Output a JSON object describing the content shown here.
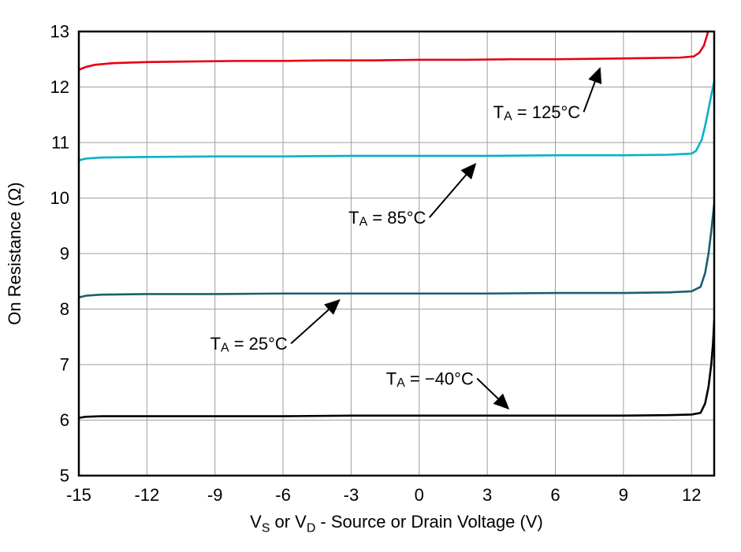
{
  "chart_data": {
    "type": "line",
    "title": "",
    "xlabel": "V[S] or V[D] - Source or Drain Voltage (V)",
    "ylabel": "On Resistance (Ω)",
    "xlim": [
      -15,
      13
    ],
    "ylim": [
      5,
      13
    ],
    "x_ticks": [
      -15,
      -12,
      -9,
      -6,
      -3,
      0,
      3,
      6,
      9,
      12
    ],
    "y_ticks": [
      5,
      6,
      7,
      8,
      9,
      10,
      11,
      12,
      13
    ],
    "grid": true,
    "grid_color": "#9e9e9e",
    "border_color": "#000000",
    "series": [
      {
        "name": "T[A] = 125°C",
        "color": "#e60012",
        "points": [
          [
            -15,
            12.31
          ],
          [
            -14.7,
            12.36
          ],
          [
            -14.3,
            12.4
          ],
          [
            -13.5,
            12.43
          ],
          [
            -12,
            12.45
          ],
          [
            -10,
            12.46
          ],
          [
            -8,
            12.47
          ],
          [
            -6,
            12.47
          ],
          [
            -4,
            12.48
          ],
          [
            -2,
            12.48
          ],
          [
            0,
            12.49
          ],
          [
            2,
            12.49
          ],
          [
            4,
            12.5
          ],
          [
            6,
            12.5
          ],
          [
            8,
            12.51
          ],
          [
            10,
            12.52
          ],
          [
            11.5,
            12.53
          ],
          [
            12.1,
            12.55
          ],
          [
            12.35,
            12.62
          ],
          [
            12.55,
            12.75
          ],
          [
            12.7,
            12.95
          ],
          [
            12.8,
            13.2
          ]
        ]
      },
      {
        "name": "T[A] = 85°C",
        "color": "#00b2c8",
        "points": [
          [
            -15,
            10.68
          ],
          [
            -14.7,
            10.71
          ],
          [
            -14,
            10.73
          ],
          [
            -12,
            10.74
          ],
          [
            -9,
            10.75
          ],
          [
            -6,
            10.75
          ],
          [
            -3,
            10.76
          ],
          [
            0,
            10.76
          ],
          [
            3,
            10.76
          ],
          [
            6,
            10.77
          ],
          [
            9,
            10.77
          ],
          [
            11,
            10.78
          ],
          [
            12,
            10.8
          ],
          [
            12.2,
            10.85
          ],
          [
            12.45,
            11.05
          ],
          [
            12.6,
            11.3
          ],
          [
            12.75,
            11.6
          ],
          [
            12.87,
            11.85
          ],
          [
            13,
            12.1
          ]
        ]
      },
      {
        "name": "T[A] = 25°C",
        "color": "#19606f",
        "points": [
          [
            -15,
            8.21
          ],
          [
            -14.7,
            8.24
          ],
          [
            -14,
            8.26
          ],
          [
            -12,
            8.27
          ],
          [
            -9,
            8.27
          ],
          [
            -6,
            8.28
          ],
          [
            -3,
            8.28
          ],
          [
            0,
            8.28
          ],
          [
            3,
            8.28
          ],
          [
            6,
            8.29
          ],
          [
            9,
            8.29
          ],
          [
            11,
            8.3
          ],
          [
            12,
            8.32
          ],
          [
            12.4,
            8.4
          ],
          [
            12.6,
            8.65
          ],
          [
            12.75,
            9.0
          ],
          [
            12.87,
            9.4
          ],
          [
            13,
            9.9
          ]
        ]
      },
      {
        "name": "T[A] = −40°C",
        "color": "#000000",
        "points": [
          [
            -15,
            6.04
          ],
          [
            -14.7,
            6.06
          ],
          [
            -14,
            6.07
          ],
          [
            -12,
            6.07
          ],
          [
            -9,
            6.07
          ],
          [
            -6,
            6.07
          ],
          [
            -3,
            6.08
          ],
          [
            0,
            6.08
          ],
          [
            3,
            6.08
          ],
          [
            6,
            6.08
          ],
          [
            9,
            6.08
          ],
          [
            11,
            6.09
          ],
          [
            12,
            6.1
          ],
          [
            12.4,
            6.13
          ],
          [
            12.6,
            6.3
          ],
          [
            12.75,
            6.6
          ],
          [
            12.87,
            7.0
          ],
          [
            12.95,
            7.4
          ],
          [
            13,
            7.8
          ]
        ]
      }
    ],
    "annotations": [
      {
        "label": "T[A] = 125°C",
        "tx": 7.1,
        "ty": 11.55,
        "arrow": [
          [
            7.25,
            11.55
          ],
          [
            7.95,
            12.32
          ]
        ]
      },
      {
        "label": "T[A] = 85°C",
        "tx": 0.3,
        "ty": 9.65,
        "arrow": [
          [
            0.45,
            9.65
          ],
          [
            2.45,
            10.6
          ]
        ]
      },
      {
        "label": "T[A] = 25°C",
        "tx": -5.8,
        "ty": 7.38,
        "arrow": [
          [
            -5.65,
            7.38
          ],
          [
            -3.55,
            8.15
          ]
        ]
      },
      {
        "label": "T[A] = −40°C",
        "tx": 2.4,
        "ty": 6.75,
        "arrow": [
          [
            2.55,
            6.75
          ],
          [
            3.9,
            6.22
          ]
        ]
      }
    ]
  }
}
